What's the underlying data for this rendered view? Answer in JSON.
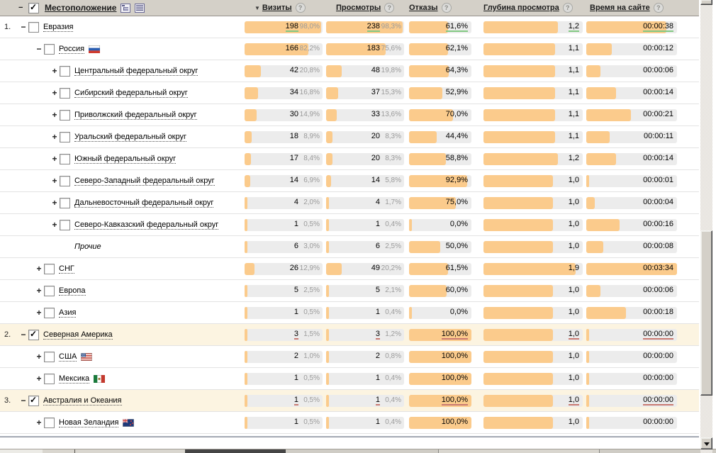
{
  "header": {
    "collapse_toggle": "−",
    "location": {
      "label": "Местоположение",
      "checkbox": "checked"
    },
    "sort_indicator": "▼",
    "help_glyph": "?",
    "columns": [
      {
        "label": "Визиты",
        "sorted": true
      },
      {
        "label": "Просмотры",
        "sorted": false
      },
      {
        "label": "Отказы",
        "sorted": false
      },
      {
        "label": "Глубина просмотра",
        "sorted": false
      },
      {
        "label": "Время на сайте",
        "sorted": false
      }
    ],
    "view_icons": [
      "tree-view-icon",
      "list-view-icon"
    ]
  },
  "colors": {
    "bar_fill": "#fbcb8c",
    "bar_track": "#ececec",
    "row_highlight": "#fcf4e1",
    "underline_green": "#82c882",
    "underline_red": "#c97a72",
    "header_bg": "#d4d0c8"
  },
  "rows": [
    {
      "num": "1.",
      "toggle": "−",
      "checkbox": "unchecked",
      "label": "Евразия",
      "level": 1,
      "italic": false,
      "flag": null,
      "bg": "white",
      "underline": "green",
      "visits": {
        "value": "198",
        "pct": "98,0%",
        "fill": 98
      },
      "views": {
        "value": "238",
        "pct": "98,3%",
        "fill": 98
      },
      "bounce": {
        "value": "61,6%",
        "fill": 62
      },
      "depth": {
        "value": "1,2",
        "fill": 75
      },
      "time": {
        "value": "00:00:38",
        "fill": 88
      }
    },
    {
      "num": "",
      "toggle": "−",
      "checkbox": "unchecked",
      "label": "Россия",
      "level": 2,
      "italic": false,
      "flag": "russia",
      "bg": "white",
      "underline": null,
      "visits": {
        "value": "166",
        "pct": "82,2%",
        "fill": 82
      },
      "views": {
        "value": "183",
        "pct": "75,6%",
        "fill": 76
      },
      "bounce": {
        "value": "62,1%",
        "fill": 62
      },
      "depth": {
        "value": "1,1",
        "fill": 72
      },
      "time": {
        "value": "00:00:12",
        "fill": 28
      }
    },
    {
      "num": "",
      "toggle": "+",
      "checkbox": "unchecked",
      "label": "Центральный федеральный округ",
      "level": 3,
      "italic": false,
      "flag": null,
      "bg": "white",
      "underline": null,
      "visits": {
        "value": "42",
        "pct": "20,8%",
        "fill": 21
      },
      "views": {
        "value": "48",
        "pct": "19,8%",
        "fill": 20
      },
      "bounce": {
        "value": "64,3%",
        "fill": 64
      },
      "depth": {
        "value": "1,1",
        "fill": 72
      },
      "time": {
        "value": "00:00:06",
        "fill": 16
      }
    },
    {
      "num": "",
      "toggle": "+",
      "checkbox": "unchecked",
      "label": "Сибирский федеральный округ",
      "level": 3,
      "italic": false,
      "flag": null,
      "bg": "white",
      "underline": null,
      "visits": {
        "value": "34",
        "pct": "16,8%",
        "fill": 17
      },
      "views": {
        "value": "37",
        "pct": "15,3%",
        "fill": 15
      },
      "bounce": {
        "value": "52,9%",
        "fill": 53
      },
      "depth": {
        "value": "1,1",
        "fill": 72
      },
      "time": {
        "value": "00:00:14",
        "fill": 33
      }
    },
    {
      "num": "",
      "toggle": "+",
      "checkbox": "unchecked",
      "label": "Приволжский федеральный округ",
      "level": 3,
      "italic": false,
      "flag": null,
      "bg": "white",
      "underline": null,
      "visits": {
        "value": "30",
        "pct": "14,9%",
        "fill": 15
      },
      "views": {
        "value": "33",
        "pct": "13,6%",
        "fill": 14
      },
      "bounce": {
        "value": "70,0%",
        "fill": 70
      },
      "depth": {
        "value": "1,1",
        "fill": 72
      },
      "time": {
        "value": "00:00:21",
        "fill": 49
      }
    },
    {
      "num": "",
      "toggle": "+",
      "checkbox": "unchecked",
      "label": "Уральский федеральный округ",
      "level": 3,
      "italic": false,
      "flag": null,
      "bg": "white",
      "underline": null,
      "visits": {
        "value": "18",
        "pct": "8,9%",
        "fill": 9
      },
      "views": {
        "value": "20",
        "pct": "8,3%",
        "fill": 8
      },
      "bounce": {
        "value": "44,4%",
        "fill": 44
      },
      "depth": {
        "value": "1,1",
        "fill": 72
      },
      "time": {
        "value": "00:00:11",
        "fill": 26
      }
    },
    {
      "num": "",
      "toggle": "+",
      "checkbox": "unchecked",
      "label": "Южный федеральный округ",
      "level": 3,
      "italic": false,
      "flag": null,
      "bg": "white",
      "underline": null,
      "visits": {
        "value": "17",
        "pct": "8,4%",
        "fill": 8
      },
      "views": {
        "value": "20",
        "pct": "8,3%",
        "fill": 8
      },
      "bounce": {
        "value": "58,8%",
        "fill": 59
      },
      "depth": {
        "value": "1,2",
        "fill": 75
      },
      "time": {
        "value": "00:00:14",
        "fill": 33
      }
    },
    {
      "num": "",
      "toggle": "+",
      "checkbox": "unchecked",
      "label": "Северо-Западный федеральный округ",
      "level": 3,
      "italic": false,
      "flag": null,
      "bg": "white",
      "underline": null,
      "visits": {
        "value": "14",
        "pct": "6,9%",
        "fill": 7
      },
      "views": {
        "value": "14",
        "pct": "5,8%",
        "fill": 6
      },
      "bounce": {
        "value": "92,9%",
        "fill": 93
      },
      "depth": {
        "value": "1,0",
        "fill": 70
      },
      "time": {
        "value": "00:00:01",
        "fill": 3
      }
    },
    {
      "num": "",
      "toggle": "+",
      "checkbox": "unchecked",
      "label": "Дальневосточный федеральный округ",
      "level": 3,
      "italic": false,
      "flag": null,
      "bg": "white",
      "underline": null,
      "visits": {
        "value": "4",
        "pct": "2,0%",
        "fill": 2
      },
      "views": {
        "value": "4",
        "pct": "1,7%",
        "fill": 2
      },
      "bounce": {
        "value": "75,0%",
        "fill": 75
      },
      "depth": {
        "value": "1,0",
        "fill": 70
      },
      "time": {
        "value": "00:00:04",
        "fill": 9
      }
    },
    {
      "num": "",
      "toggle": "+",
      "checkbox": "unchecked",
      "label": "Северо-Кавказский федеральный округ",
      "level": 3,
      "italic": false,
      "flag": null,
      "bg": "white",
      "underline": null,
      "visits": {
        "value": "1",
        "pct": "0,5%",
        "fill": 1
      },
      "views": {
        "value": "1",
        "pct": "0,4%",
        "fill": 1
      },
      "bounce": {
        "value": "0,0%",
        "fill": 0
      },
      "depth": {
        "value": "1,0",
        "fill": 70
      },
      "time": {
        "value": "00:00:16",
        "fill": 37
      }
    },
    {
      "num": "",
      "toggle": "",
      "checkbox": "none",
      "label": "Прочие",
      "level": 3,
      "italic": true,
      "flag": null,
      "bg": "white",
      "underline": null,
      "visits": {
        "value": "6",
        "pct": "3,0%",
        "fill": 3
      },
      "views": {
        "value": "6",
        "pct": "2,5%",
        "fill": 3
      },
      "bounce": {
        "value": "50,0%",
        "fill": 50
      },
      "depth": {
        "value": "1,0",
        "fill": 70
      },
      "time": {
        "value": "00:00:08",
        "fill": 19
      }
    },
    {
      "num": "",
      "toggle": "+",
      "checkbox": "unchecked",
      "label": "СНГ",
      "level": 2,
      "italic": false,
      "flag": null,
      "bg": "white",
      "underline": null,
      "visits": {
        "value": "26",
        "pct": "12,9%",
        "fill": 13
      },
      "views": {
        "value": "49",
        "pct": "20,2%",
        "fill": 20
      },
      "bounce": {
        "value": "61,5%",
        "fill": 62
      },
      "depth": {
        "value": "1,9",
        "fill": 93
      },
      "time": {
        "value": "00:03:34",
        "fill": 100
      }
    },
    {
      "num": "",
      "toggle": "+",
      "checkbox": "unchecked",
      "label": "Европа",
      "level": 2,
      "italic": false,
      "flag": null,
      "bg": "white",
      "underline": null,
      "visits": {
        "value": "5",
        "pct": "2,5%",
        "fill": 3
      },
      "views": {
        "value": "5",
        "pct": "2,1%",
        "fill": 2
      },
      "bounce": {
        "value": "60,0%",
        "fill": 60
      },
      "depth": {
        "value": "1,0",
        "fill": 70
      },
      "time": {
        "value": "00:00:06",
        "fill": 16
      }
    },
    {
      "num": "",
      "toggle": "+",
      "checkbox": "unchecked",
      "label": "Азия",
      "level": 2,
      "italic": false,
      "flag": null,
      "bg": "white",
      "underline": null,
      "visits": {
        "value": "1",
        "pct": "0,5%",
        "fill": 1
      },
      "views": {
        "value": "1",
        "pct": "0,4%",
        "fill": 1
      },
      "bounce": {
        "value": "0,0%",
        "fill": 0
      },
      "depth": {
        "value": "1,0",
        "fill": 70
      },
      "time": {
        "value": "00:00:18",
        "fill": 44
      }
    },
    {
      "num": "2.",
      "toggle": "−",
      "checkbox": "checked",
      "label": "Северная Америка",
      "level": 1,
      "italic": false,
      "flag": null,
      "bg": "cream",
      "underline": "red",
      "visits": {
        "value": "3",
        "pct": "1,5%",
        "fill": 2
      },
      "views": {
        "value": "3",
        "pct": "1,2%",
        "fill": 1
      },
      "bounce": {
        "value": "100,0%",
        "fill": 100
      },
      "depth": {
        "value": "1,0",
        "fill": 70
      },
      "time": {
        "value": "00:00:00",
        "fill": 0
      }
    },
    {
      "num": "",
      "toggle": "+",
      "checkbox": "unchecked",
      "label": "США",
      "level": 2,
      "italic": false,
      "flag": "usa",
      "bg": "white",
      "underline": null,
      "visits": {
        "value": "2",
        "pct": "1,0%",
        "fill": 1
      },
      "views": {
        "value": "2",
        "pct": "0,8%",
        "fill": 1
      },
      "bounce": {
        "value": "100,0%",
        "fill": 100
      },
      "depth": {
        "value": "1,0",
        "fill": 70
      },
      "time": {
        "value": "00:00:00",
        "fill": 0
      }
    },
    {
      "num": "",
      "toggle": "+",
      "checkbox": "unchecked",
      "label": "Мексика",
      "level": 2,
      "italic": false,
      "flag": "mexico",
      "bg": "white",
      "underline": null,
      "visits": {
        "value": "1",
        "pct": "0,5%",
        "fill": 1
      },
      "views": {
        "value": "1",
        "pct": "0,4%",
        "fill": 1
      },
      "bounce": {
        "value": "100,0%",
        "fill": 100
      },
      "depth": {
        "value": "1,0",
        "fill": 70
      },
      "time": {
        "value": "00:00:00",
        "fill": 0
      }
    },
    {
      "num": "3.",
      "toggle": "−",
      "checkbox": "checked",
      "label": "Австралия и Океания",
      "level": 1,
      "italic": false,
      "flag": null,
      "bg": "cream",
      "underline": "red",
      "visits": {
        "value": "1",
        "pct": "0,5%",
        "fill": 1
      },
      "views": {
        "value": "1",
        "pct": "0,4%",
        "fill": 1
      },
      "bounce": {
        "value": "100,0%",
        "fill": 100
      },
      "depth": {
        "value": "1,0",
        "fill": 70
      },
      "time": {
        "value": "00:00:00",
        "fill": 0
      }
    },
    {
      "num": "",
      "toggle": "+",
      "checkbox": "unchecked",
      "label": "Новая Зеландия",
      "level": 2,
      "italic": false,
      "flag": "new-zealand",
      "bg": "white",
      "underline": null,
      "visits": {
        "value": "1",
        "pct": "0,5%",
        "fill": 1
      },
      "views": {
        "value": "1",
        "pct": "0,4%",
        "fill": 1
      },
      "bounce": {
        "value": "100,0%",
        "fill": 100
      },
      "depth": {
        "value": "1,0",
        "fill": 70
      },
      "time": {
        "value": "00:00:00",
        "fill": 0
      }
    }
  ]
}
